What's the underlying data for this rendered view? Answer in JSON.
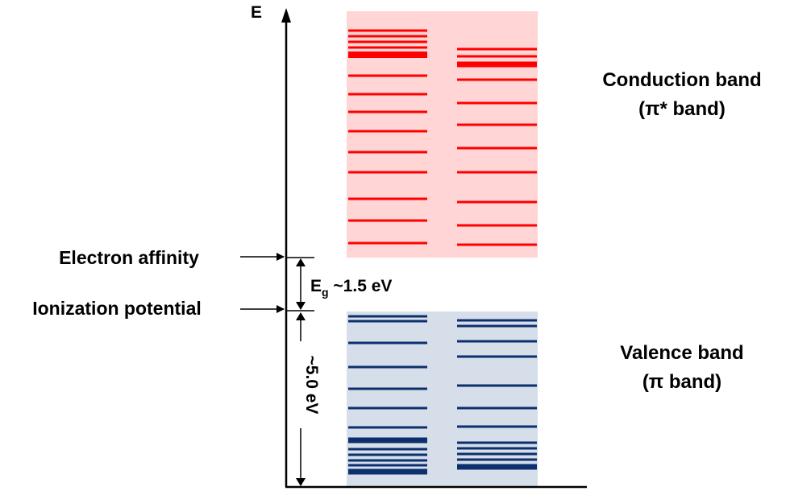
{
  "axis": {
    "label": "E"
  },
  "annotations": {
    "electron_affinity": "Electron affinity",
    "ionization_potential": "Ionization potential",
    "gap_symbol": "E",
    "gap_subscript": "g",
    "gap_value": " ~1.5 eV",
    "ionization_value": "~5.0 eV"
  },
  "bands": {
    "conduction": {
      "line1": "Conduction band",
      "line2": "(π* band)",
      "fill_color": "#ffd5d5",
      "line_color": "#ff0000"
    },
    "valence": {
      "line1": "Valence band",
      "line2": "(π band)",
      "fill_color": "#d6deea",
      "line_color": "#0c2f6e"
    }
  }
}
